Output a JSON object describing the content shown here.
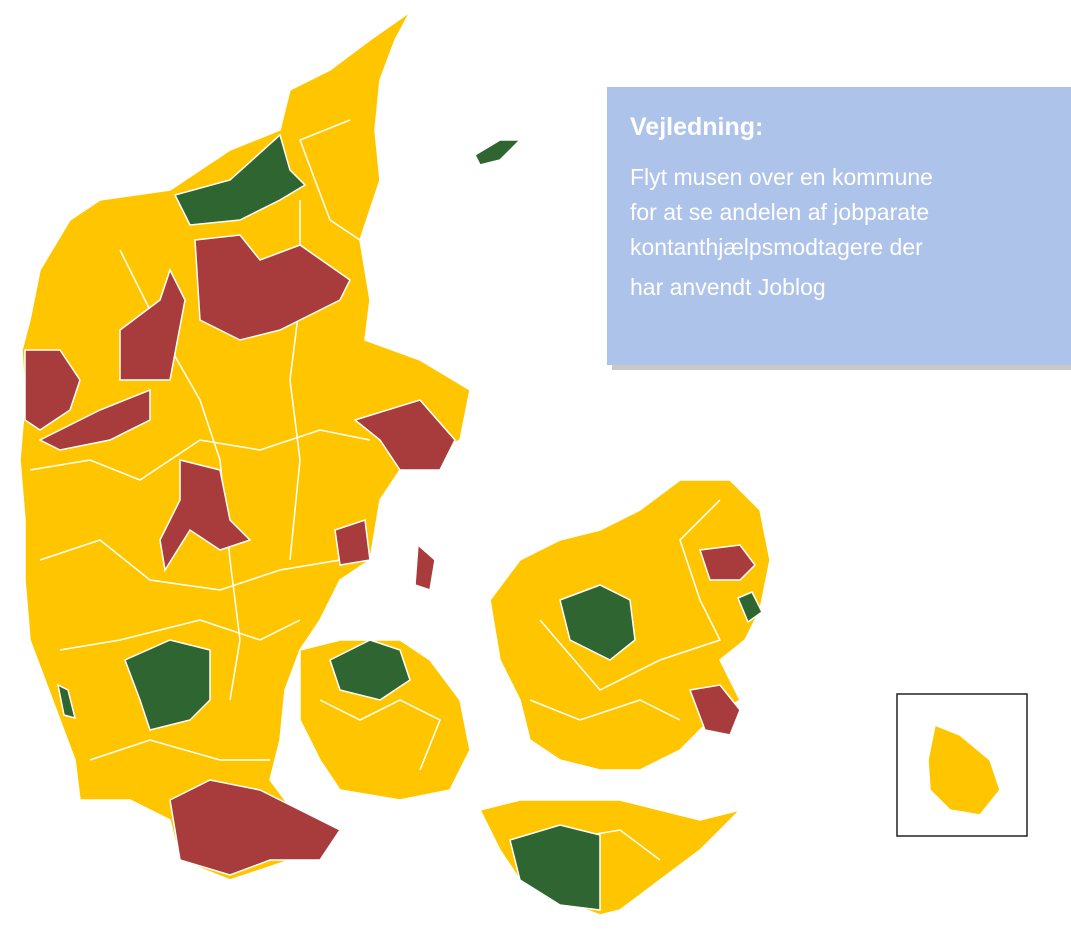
{
  "info_box": {
    "title": "Vejledning:",
    "lines": [
      "Flyt musen over en kommune",
      "for at se andelen af jobparate",
      "kontanthjælpsmodtagere der",
      "har anvendt Joblog"
    ]
  }
}
